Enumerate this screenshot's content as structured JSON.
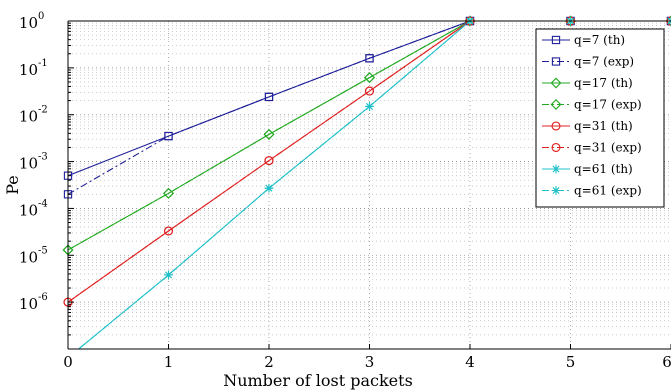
{
  "chart_data": {
    "type": "line",
    "title": "",
    "xlabel": "Number of lost packets",
    "ylabel": "Pe",
    "xlim": [
      0,
      6
    ],
    "ylim": [
      1e-07,
      1
    ],
    "yscale": "log",
    "grid": true,
    "legend_position": "top-right",
    "x_ticks": [
      0,
      1,
      2,
      3,
      4,
      5,
      6
    ],
    "y_tick_exponents": [
      0,
      -1,
      -2,
      -3,
      -4,
      -5,
      -6
    ],
    "y_tick_base": "10",
    "series": [
      {
        "name": "q=7 (th)",
        "color": "#1f1f9a",
        "marker": "square",
        "dash": "solid",
        "x": [
          0,
          1,
          2,
          3,
          4,
          5,
          6
        ],
        "y": [
          0.0005,
          0.0035,
          0.024,
          0.16,
          1,
          1,
          1
        ]
      },
      {
        "name": "q=7 (exp)",
        "color": "#1f1f9a",
        "marker": "square",
        "dash": "dashdot",
        "x": [
          0,
          1,
          2,
          3,
          4,
          5,
          6
        ],
        "y": [
          0.0002,
          0.0035,
          0.024,
          0.16,
          1,
          1,
          1
        ]
      },
      {
        "name": "q=17 (th)",
        "color": "#22aa22",
        "marker": "diamond",
        "dash": "solid",
        "x": [
          0,
          1,
          2,
          3,
          4,
          5,
          6
        ],
        "y": [
          1.3e-05,
          0.00021,
          0.0038,
          0.062,
          1,
          1,
          1
        ]
      },
      {
        "name": "q=17 (exp)",
        "color": "#22aa22",
        "marker": "diamond",
        "dash": "dashdot",
        "x": [
          0,
          1,
          2,
          3,
          4,
          5,
          6
        ],
        "y": [
          1.3e-05,
          0.00021,
          0.0038,
          0.062,
          1,
          1,
          1
        ]
      },
      {
        "name": "q=31 (th)",
        "color": "#e02020",
        "marker": "circle",
        "dash": "solid",
        "x": [
          0,
          1,
          2,
          3,
          4,
          5,
          6
        ],
        "y": [
          1e-06,
          3.3e-05,
          0.00105,
          0.032,
          1,
          1,
          1
        ]
      },
      {
        "name": "q=31 (exp)",
        "color": "#e02020",
        "marker": "circle",
        "dash": "dashdot",
        "x": [
          0,
          1,
          2,
          3,
          4,
          5,
          6
        ],
        "y": [
          1e-06,
          3.3e-05,
          0.00105,
          0.032,
          1,
          1,
          1
        ]
      },
      {
        "name": "q=61 (th)",
        "color": "#20c0c8",
        "marker": "star",
        "dash": "solid",
        "x": [
          0,
          1,
          2,
          3,
          4,
          5,
          6
        ],
        "y": [
          6.5e-08,
          3.8e-06,
          0.00027,
          0.015,
          1,
          1,
          1
        ]
      },
      {
        "name": "q=61 (exp)",
        "color": "#20c0c8",
        "marker": "star",
        "dash": "dashdot",
        "x": [
          0,
          1,
          2,
          3,
          4,
          5,
          6
        ],
        "y": [
          6.5e-08,
          3.8e-06,
          0.00027,
          0.015,
          1,
          1,
          1
        ]
      }
    ]
  }
}
